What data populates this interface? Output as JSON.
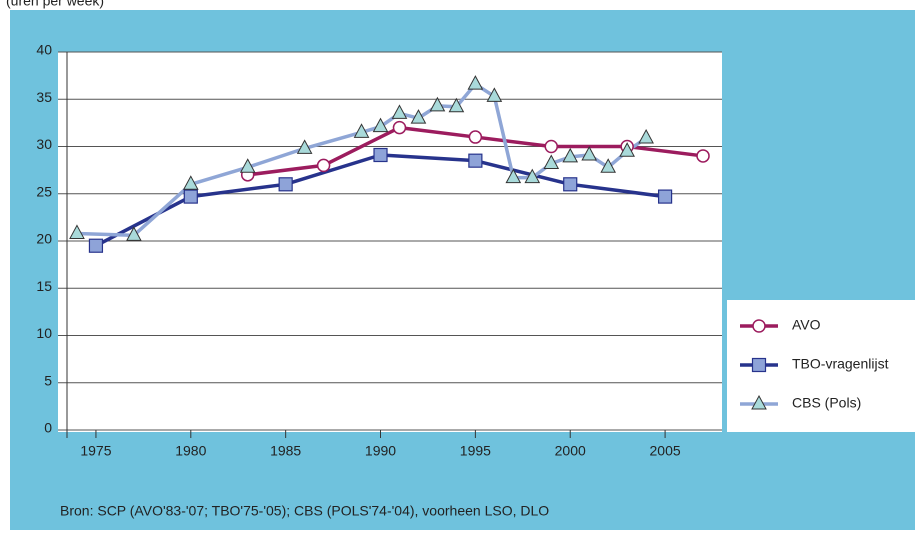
{
  "chart_data": {
    "type": "line",
    "subtitle": "(uren per week)",
    "source": "Bron: SCP (AVO'83-'07; TBO'75-'05); CBS (POLS'74-'04), voorheen LSO, DLO",
    "xlim": [
      1973,
      2008
    ],
    "xticks": [
      1975,
      1980,
      1985,
      1990,
      1995,
      2000,
      2005
    ],
    "ylim": [
      0,
      40
    ],
    "yticks": [
      0,
      5,
      10,
      15,
      20,
      25,
      30,
      35,
      40
    ],
    "grid": true,
    "legend": "right",
    "series": [
      {
        "name": "AVO",
        "color": "#9c1c5e",
        "marker": "circle",
        "x": [
          1983,
          1987,
          1991,
          1995,
          1999,
          2003,
          2007
        ],
        "values": [
          27,
          28,
          32,
          31,
          30,
          30,
          29
        ]
      },
      {
        "name": "TBO-vragenlijst",
        "color": "#27338c",
        "marker": "square",
        "x": [
          1975,
          1980,
          1985,
          1990,
          1995,
          2000,
          2005
        ],
        "values": [
          19.5,
          24.7,
          26,
          29.1,
          28.5,
          26,
          24.7
        ]
      },
      {
        "name": "CBS (Pols)",
        "color": "#8fa6d6",
        "marker": "triangle",
        "x": [
          1974,
          1977,
          1980,
          1983,
          1986,
          1989,
          1990,
          1991,
          1992,
          1993,
          1994,
          1995,
          1996,
          1997,
          1998,
          1999,
          2000,
          2001,
          2002,
          2003,
          2004
        ],
        "values": [
          20.8,
          20.6,
          26,
          27.8,
          29.8,
          31.5,
          32.1,
          33.5,
          33,
          34.3,
          34.2,
          36.6,
          35.3,
          26.7,
          26.7,
          28.2,
          28.9,
          29.1,
          27.8,
          29.5,
          30.9
        ]
      }
    ]
  }
}
